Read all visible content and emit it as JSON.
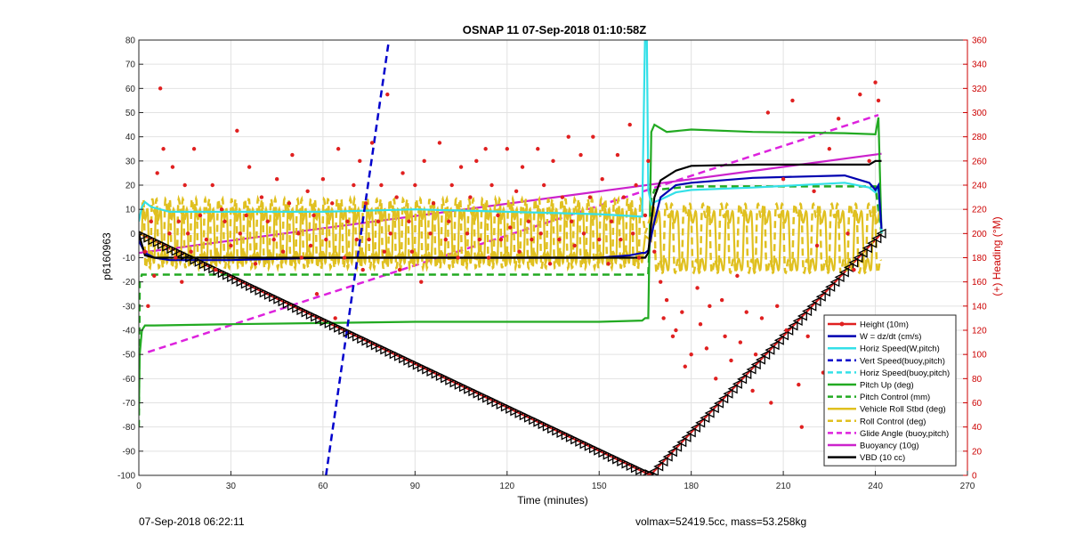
{
  "footer": {
    "left": "07-Sep-2018 06:22:11",
    "right": "volmax=52419.5cc, mass=53.258kg"
  },
  "chart_data": {
    "type": "line",
    "title": "OSNAP 11 07-Sep-2018 01:10:58Z",
    "xlabel": "Time (minutes)",
    "ylabel": "p6160963",
    "y2label": "(+) Heading (°M)",
    "xlim": [
      0,
      270
    ],
    "ylim": [
      -100,
      80
    ],
    "y2lim": [
      0,
      360
    ],
    "xticks": [
      0,
      30,
      60,
      90,
      120,
      150,
      180,
      210,
      240,
      270
    ],
    "yticks": [
      -100,
      -90,
      -80,
      -70,
      -60,
      -50,
      -40,
      -30,
      -20,
      -10,
      0,
      10,
      20,
      30,
      40,
      50,
      60,
      70,
      80
    ],
    "y2ticks": [
      0,
      20,
      40,
      60,
      80,
      100,
      120,
      140,
      160,
      180,
      200,
      220,
      240,
      260,
      280,
      300,
      320,
      340,
      360
    ],
    "grid": true,
    "legend_position": "bottom-right",
    "colors": {
      "right_axis": "#cc0000",
      "height": "#e02020",
      "w": "#0000b0",
      "horiz_speed": "#33e0e8",
      "vert_speed": "#0000cc",
      "pitch": "#22aa22",
      "roll": "#e0c020",
      "glide": "#dd22dd",
      "buoyancy": "#cc22cc",
      "vbd": "#000000"
    },
    "series": [
      {
        "name": "Height (10m)",
        "color": "#e02020",
        "style": "solid",
        "marker": "dot",
        "x": [
          0,
          166,
          167,
          242
        ],
        "y": [
          0,
          -99.5,
          -99.5,
          0
        ]
      },
      {
        "name": "W = dz/dt (cm/s)",
        "color": "#0000b0",
        "style": "solid",
        "x": [
          0,
          2,
          5,
          10,
          30,
          60,
          90,
          120,
          150,
          160,
          164,
          165,
          166,
          168,
          170,
          175,
          180,
          200,
          230,
          238,
          240,
          241,
          242
        ],
        "y": [
          -3,
          -8,
          -10,
          -11,
          -11,
          -10,
          -10,
          -10,
          -10,
          -9,
          -8,
          -8,
          -7,
          5,
          15,
          20,
          21,
          23,
          24,
          21,
          18,
          20,
          2
        ]
      },
      {
        "name": "Horiz Speed(W,pitch)",
        "color": "#33e0e8",
        "style": "solid",
        "x": [
          0,
          1,
          2,
          4,
          10,
          30,
          60,
          90,
          120,
          150,
          164,
          165,
          165.5,
          166,
          167,
          168,
          170,
          175,
          180,
          200,
          230,
          238,
          240,
          241,
          242
        ],
        "y": [
          5,
          11,
          13,
          11,
          9,
          9,
          9,
          10,
          9,
          8,
          7,
          85,
          85,
          18,
          12,
          13,
          14,
          17,
          18,
          19,
          21,
          19,
          17,
          19,
          0
        ]
      },
      {
        "name": "Vert Speed(buoy,pitch)",
        "color": "#0000cc",
        "style": "dashed",
        "x": [
          61,
          81.5
        ],
        "y": [
          -100,
          80
        ]
      },
      {
        "name": "Horiz Speed(buoy,pitch)",
        "color": "#33e0e8",
        "style": "dashed",
        "x": [],
        "y": []
      },
      {
        "name": "Pitch Up (deg)",
        "color": "#22aa22",
        "style": "solid",
        "x": [
          0,
          0.3,
          1,
          2,
          5,
          30,
          60,
          90,
          120,
          150,
          164,
          165,
          166,
          167,
          168,
          172,
          180,
          200,
          230,
          240,
          241,
          242
        ],
        "y": [
          -75,
          -50,
          -40,
          -38,
          -38,
          -37.5,
          -37,
          -36.5,
          -36.5,
          -36.5,
          -36,
          -35,
          -35,
          42,
          45,
          42,
          43,
          42,
          41.5,
          41,
          48,
          0
        ]
      },
      {
        "name": "Pitch Control (mm)",
        "color": "#22aa22",
        "style": "dashed",
        "x": [
          0,
          0.3,
          1,
          2,
          30,
          60,
          90,
          120,
          150,
          165,
          166,
          167,
          168,
          180,
          210,
          240,
          242
        ],
        "y": [
          -80,
          -20,
          -17,
          -17,
          -17,
          -17,
          -17,
          -17,
          -17,
          -17,
          -17,
          14,
          18,
          19.5,
          19.5,
          19.5,
          0
        ]
      },
      {
        "name": "Vehicle Roll Stbd (deg)",
        "color": "#e0c020",
        "style": "solid",
        "osc": {
          "x0": 1,
          "x1": 164,
          "period": 4.3,
          "amp": 11,
          "base": -1,
          "x2": 167,
          "x3": 242,
          "period2": 6,
          "amp2": 12,
          "base2": -3
        }
      },
      {
        "name": "Roll Control (deg)",
        "color": "#e0c020",
        "style": "dashed",
        "osc": {
          "x0": 1,
          "x1": 164,
          "period": 4.3,
          "amp": 14,
          "base": 0,
          "x2": 167,
          "x3": 242,
          "period2": 6,
          "amp2": 14,
          "base2": -2
        }
      },
      {
        "name": "Glide Angle (buoy,pitch)",
        "color": "#dd22dd",
        "style": "dashed",
        "x": [
          3,
          241
        ],
        "y": [
          -49,
          49
        ]
      },
      {
        "name": "Buoyancy (10g)",
        "color": "#cc22cc",
        "style": "solid",
        "x": [
          0,
          242
        ],
        "y": [
          -8,
          33
        ]
      },
      {
        "name": "VBD (10 cc)",
        "color": "#000000",
        "style": "solid",
        "x": [
          0,
          2,
          5,
          30,
          60,
          90,
          120,
          150,
          164,
          165,
          166,
          167,
          168,
          170,
          175,
          180,
          200,
          238,
          240,
          241,
          242
        ],
        "y": [
          0,
          -9,
          -10,
          -10,
          -10,
          -10,
          -10,
          -10,
          -10,
          -10,
          -8,
          5,
          15,
          22,
          26,
          28,
          28.5,
          28.5,
          30,
          30,
          30
        ]
      }
    ],
    "triangles_count": 160,
    "scatter": {
      "name": "Heading",
      "axis": "right",
      "color": "#e02020",
      "x": [
        2,
        3,
        4,
        5,
        6,
        7,
        8,
        10,
        11,
        12,
        13,
        14,
        15,
        16,
        17,
        18,
        20,
        22,
        24,
        25,
        27,
        28,
        30,
        32,
        33,
        35,
        36,
        38,
        40,
        42,
        44,
        45,
        47,
        49,
        50,
        52,
        53,
        55,
        56,
        57,
        58,
        60,
        61,
        63,
        64,
        65,
        67,
        68,
        70,
        71,
        72,
        73,
        74,
        75,
        76,
        78,
        79,
        80,
        81,
        82,
        84,
        85,
        86,
        88,
        89,
        90,
        92,
        93,
        95,
        96,
        98,
        100,
        101,
        102,
        104,
        105,
        107,
        108,
        110,
        111,
        113,
        114,
        115,
        117,
        118,
        120,
        121,
        123,
        124,
        125,
        127,
        128,
        130,
        131,
        132,
        134,
        135,
        137,
        138,
        140,
        141,
        142,
        144,
        145,
        147,
        148,
        150,
        151,
        153,
        154,
        156,
        157,
        158,
        160,
        161,
        162,
        163,
        165,
        166,
        168,
        170,
        171,
        172,
        174,
        175,
        177,
        178,
        180,
        182,
        183,
        185,
        186,
        188,
        190,
        191,
        193,
        195,
        196,
        198,
        200,
        201,
        203,
        205,
        206,
        208,
        210,
        211,
        213,
        215,
        216,
        218,
        220,
        221,
        223,
        225,
        226,
        228,
        230,
        231,
        233,
        235,
        236,
        238,
        239,
        240,
        241
      ],
      "y": [
        185,
        140,
        210,
        165,
        250,
        320,
        270,
        200,
        255,
        180,
        210,
        160,
        240,
        200,
        185,
        270,
        215,
        195,
        240,
        170,
        220,
        210,
        190,
        285,
        200,
        215,
        255,
        175,
        230,
        210,
        195,
        245,
        185,
        225,
        265,
        200,
        180,
        235,
        190,
        215,
        150,
        245,
        195,
        225,
        130,
        270,
        180,
        210,
        240,
        195,
        260,
        170,
        225,
        195,
        275,
        210,
        240,
        185,
        315,
        200,
        230,
        170,
        250,
        210,
        185,
        240,
        160,
        260,
        200,
        225,
        275,
        195,
        210,
        240,
        180,
        255,
        200,
        230,
        260,
        195,
        270,
        180,
        240,
        215,
        195,
        270,
        205,
        235,
        185,
        255,
        210,
        195,
        270,
        200,
        240,
        175,
        260,
        195,
        230,
        280,
        210,
        190,
        265,
        200,
        230,
        280,
        195,
        245,
        175,
        210,
        265,
        195,
        230,
        290,
        200,
        240,
        180,
        215,
        260,
        185,
        160,
        130,
        145,
        115,
        120,
        135,
        90,
        100,
        155,
        125,
        105,
        140,
        80,
        145,
        115,
        95,
        165,
        110,
        135,
        70,
        100,
        130,
        300,
        60,
        140,
        245,
        120,
        310,
        75,
        40,
        115,
        235,
        190,
        85,
        270,
        55,
        295,
        100,
        200,
        170,
        315,
        65,
        260,
        35,
        325,
        310
      ]
    }
  }
}
